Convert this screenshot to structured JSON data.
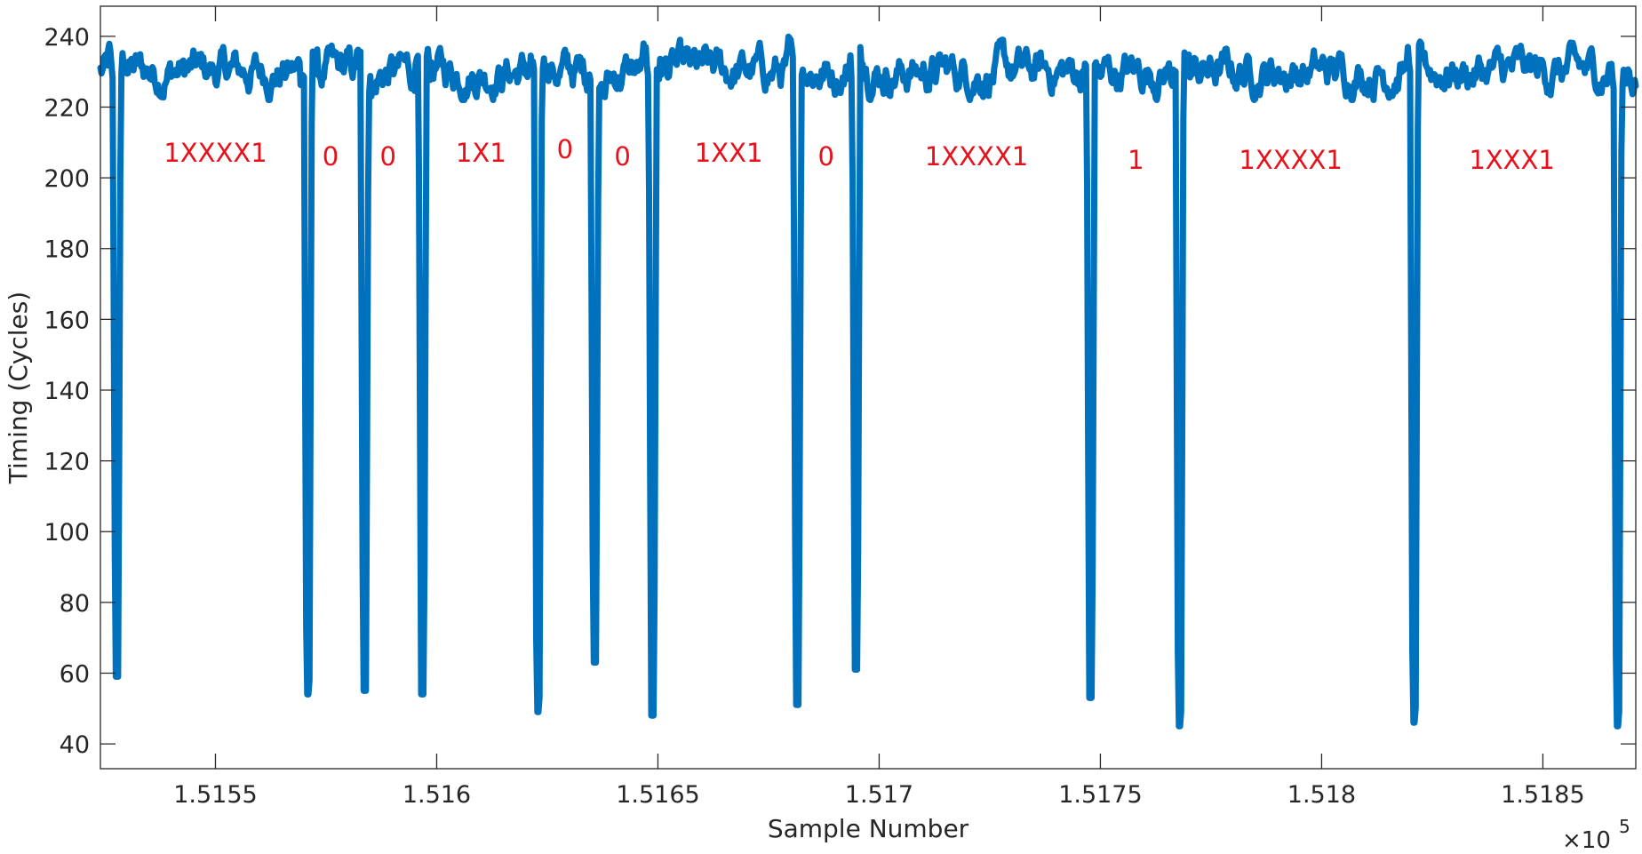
{
  "chart_data": {
    "type": "line",
    "title": "",
    "xlabel": "Sample Number",
    "ylabel": "Timing (Cycles)",
    "x_exponent_label": "×10",
    "x_exponent_power": "5",
    "xlim": [
      151524,
      151871
    ],
    "ylim": [
      33,
      248.5
    ],
    "grid": false,
    "legend": null,
    "line_color": "#0072bd",
    "annotation_color": "#e8101a",
    "x_ticks": [
      151550,
      151600,
      151650,
      151700,
      151750,
      151800,
      151850
    ],
    "x_tick_labels": [
      "1.5155",
      "1.516",
      "1.5165",
      "1.517",
      "1.5175",
      "1.518",
      "1.5185"
    ],
    "y_ticks": [
      40,
      60,
      80,
      100,
      120,
      140,
      160,
      180,
      200,
      220,
      240
    ],
    "y_tick_labels": [
      "40",
      "60",
      "80",
      "100",
      "120",
      "140",
      "160",
      "180",
      "200",
      "220",
      "240"
    ],
    "baseline_level": 230,
    "baseline_noise_range": [
      222,
      239
    ],
    "dips": [
      {
        "x": 151527.7,
        "min": 59
      },
      {
        "x": 151570.9,
        "min": 54
      },
      {
        "x": 151583.7,
        "min": 55
      },
      {
        "x": 151596.8,
        "min": 54
      },
      {
        "x": 151622.9,
        "min": 49
      },
      {
        "x": 151635.7,
        "min": 63
      },
      {
        "x": 151648.8,
        "min": 48
      },
      {
        "x": 151681.5,
        "min": 51
      },
      {
        "x": 151694.8,
        "min": 61
      },
      {
        "x": 151747.8,
        "min": 53
      },
      {
        "x": 151767.9,
        "min": 45
      },
      {
        "x": 151820.9,
        "min": 46
      },
      {
        "x": 151866.9,
        "min": 45
      }
    ],
    "annotations": [
      {
        "text": "1XXXX1",
        "x": 151550,
        "y": 207
      },
      {
        "text": "0",
        "x": 151576,
        "y": 206
      },
      {
        "text": "0",
        "x": 151589,
        "y": 206
      },
      {
        "text": "1X1",
        "x": 151610,
        "y": 207
      },
      {
        "text": "0",
        "x": 151629,
        "y": 208
      },
      {
        "text": "0",
        "x": 151642,
        "y": 206
      },
      {
        "text": "1XX1",
        "x": 151666,
        "y": 207
      },
      {
        "text": "0",
        "x": 151688,
        "y": 206
      },
      {
        "text": "1XXXX1",
        "x": 151722,
        "y": 206
      },
      {
        "text": "1",
        "x": 151758,
        "y": 205
      },
      {
        "text": "1XXXX1",
        "x": 151793,
        "y": 205
      },
      {
        "text": "1XXX1",
        "x": 151843,
        "y": 205
      }
    ]
  }
}
